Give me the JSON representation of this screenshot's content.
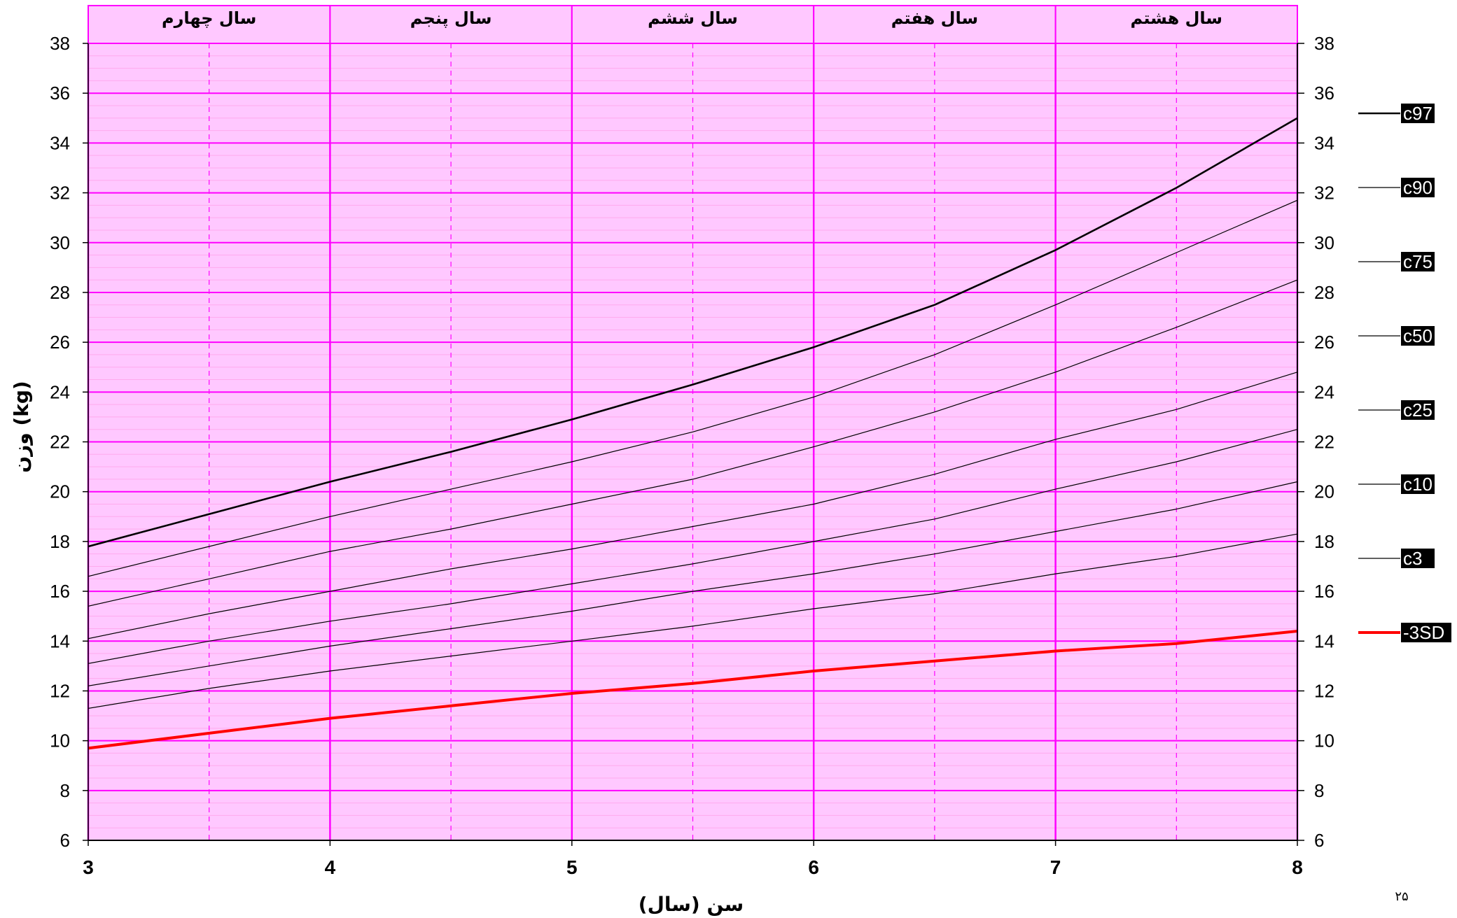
{
  "chart_data": {
    "type": "line",
    "xlabel": "سن (سال)",
    "ylabel": "وزن (kg)",
    "xlim": [
      3,
      8
    ],
    "ylim": [
      6,
      38
    ],
    "x_ticks": [
      "3",
      "4",
      "5",
      "6",
      "7",
      "8"
    ],
    "y_ticks": [
      "6",
      "8",
      "10",
      "12",
      "14",
      "16",
      "18",
      "20",
      "22",
      "24",
      "26",
      "28",
      "30",
      "32",
      "34",
      "36",
      "38"
    ],
    "year_bands": [
      {
        "label": "سال چهارم",
        "from": 3,
        "to": 4
      },
      {
        "label": "سال پنجم",
        "from": 4,
        "to": 5
      },
      {
        "label": "سال ششم",
        "from": 5,
        "to": 6
      },
      {
        "label": "سال هفتم",
        "from": 6,
        "to": 7
      },
      {
        "label": "سال هشتم",
        "from": 7,
        "to": 8
      }
    ],
    "x": [
      3,
      3.5,
      4,
      4.5,
      5,
      5.5,
      6,
      6.5,
      7,
      7.5,
      8
    ],
    "series": [
      {
        "name": "c97",
        "color": "#000000",
        "width": 2.6,
        "values": [
          17.8,
          19.1,
          20.4,
          21.6,
          22.9,
          24.3,
          25.8,
          27.5,
          29.7,
          32.2,
          35.0
        ]
      },
      {
        "name": "c90",
        "color": "#000000",
        "width": 1.2,
        "values": [
          16.6,
          17.8,
          19.0,
          20.1,
          21.2,
          22.4,
          23.8,
          25.5,
          27.5,
          29.6,
          31.7
        ]
      },
      {
        "name": "c75",
        "color": "#000000",
        "width": 1.2,
        "values": [
          15.4,
          16.5,
          17.6,
          18.5,
          19.5,
          20.5,
          21.8,
          23.2,
          24.8,
          26.6,
          28.5
        ]
      },
      {
        "name": "c50",
        "color": "#000000",
        "width": 1.2,
        "values": [
          14.1,
          15.1,
          16.0,
          16.9,
          17.7,
          18.6,
          19.5,
          20.7,
          22.1,
          23.3,
          24.8
        ]
      },
      {
        "name": "c25",
        "color": "#000000",
        "width": 1.2,
        "values": [
          13.1,
          14.0,
          14.8,
          15.5,
          16.3,
          17.1,
          18.0,
          18.9,
          20.1,
          21.2,
          22.5
        ]
      },
      {
        "name": "c10",
        "color": "#000000",
        "width": 1.2,
        "values": [
          12.2,
          13.0,
          13.8,
          14.5,
          15.2,
          16.0,
          16.7,
          17.5,
          18.4,
          19.3,
          20.4
        ]
      },
      {
        "name": "c3",
        "color": "#000000",
        "width": 1.2,
        "values": [
          11.3,
          12.1,
          12.8,
          13.4,
          14.0,
          14.6,
          15.3,
          15.9,
          16.7,
          17.4,
          18.3
        ]
      },
      {
        "name": "-3SD",
        "color": "#ff0000",
        "width": 4,
        "values": [
          9.7,
          10.3,
          10.9,
          11.4,
          11.9,
          12.3,
          12.8,
          13.2,
          13.6,
          13.9,
          14.4
        ]
      }
    ],
    "grid": true,
    "legend_position": "right"
  },
  "colors": {
    "plot_background": "#ffc8ff",
    "major_grid": "#ff00ff",
    "minor_grid": "#ffaaee",
    "header_fill": "#ffc8ff",
    "legend_box": "#000000"
  },
  "page_number": "۲۵"
}
